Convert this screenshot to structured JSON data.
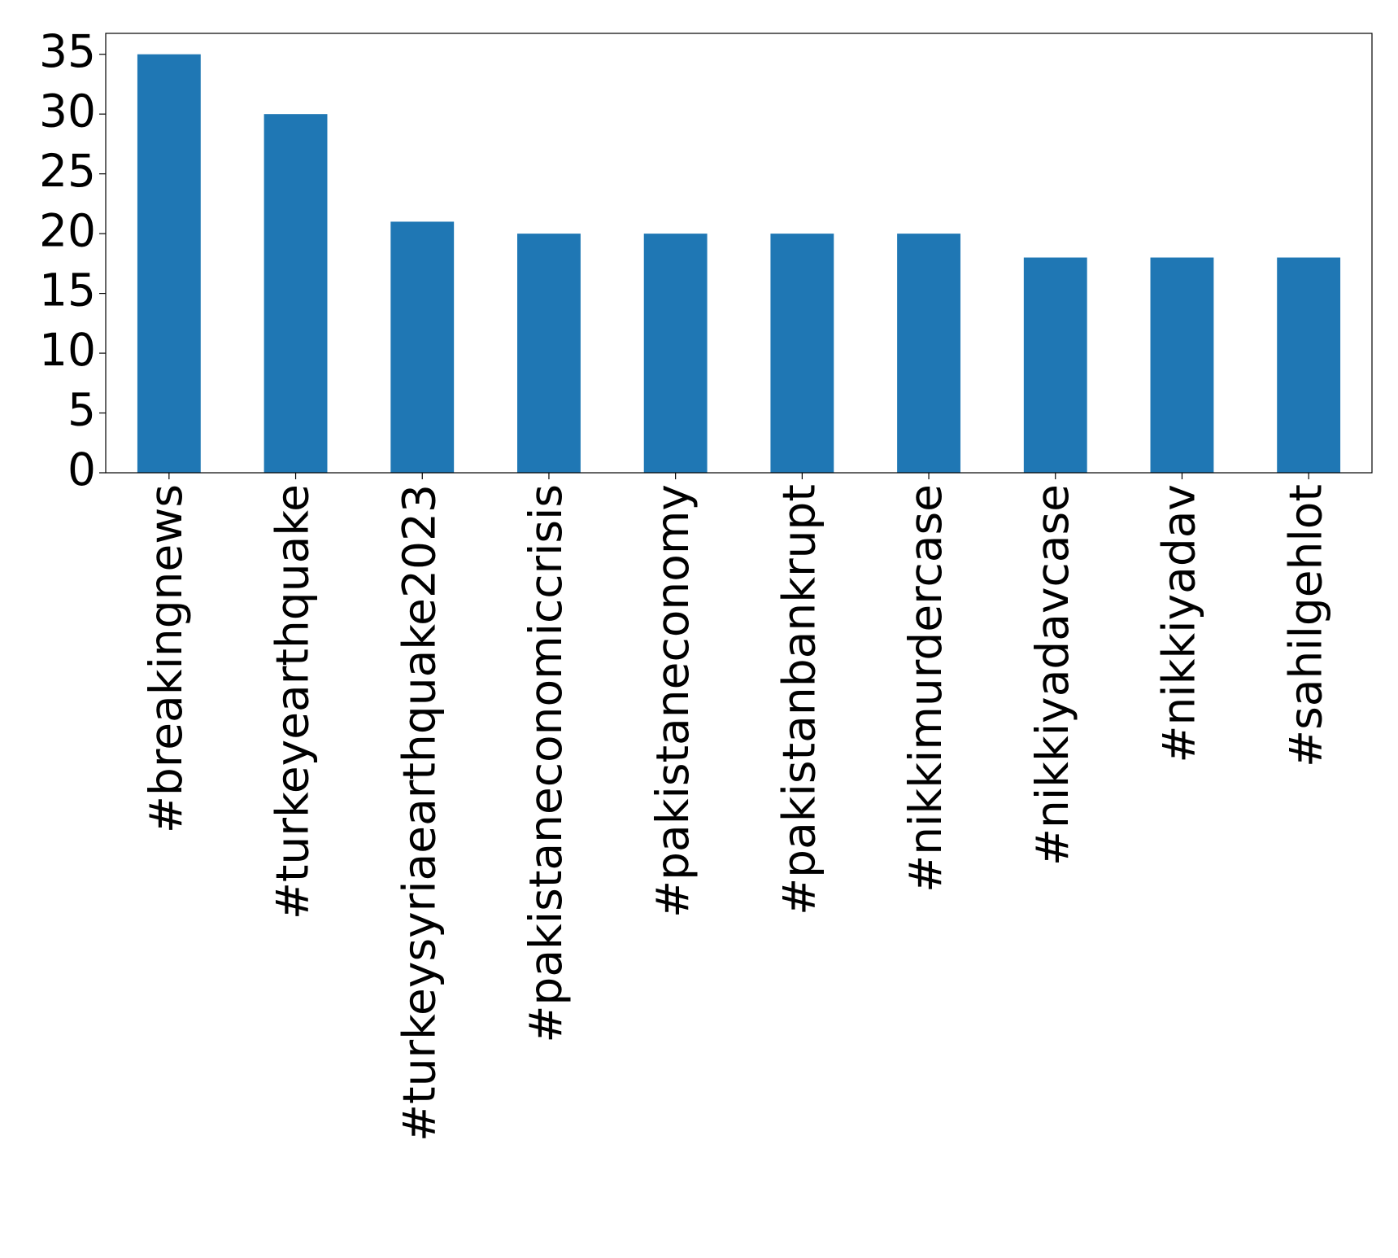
{
  "chart_data": {
    "type": "bar",
    "categories": [
      "#breakingnews",
      "#turkeyearthquake",
      "#turkeysyriaearthquake2023",
      "#pakistaneconomiccrisis",
      "#pakistaneconomy",
      "#pakistanbankrupt",
      "#nikkimurdercase",
      "#nikkiyadavcase",
      "#nikkiyadav",
      "#sahilgehlot"
    ],
    "values": [
      35,
      30,
      21,
      20,
      20,
      20,
      20,
      18,
      18,
      18
    ],
    "color": "#1f77b4",
    "ylim": [
      0,
      36.75
    ],
    "yticks": [
      0,
      5,
      10,
      15,
      20,
      25,
      30,
      35
    ],
    "grid": false
  }
}
